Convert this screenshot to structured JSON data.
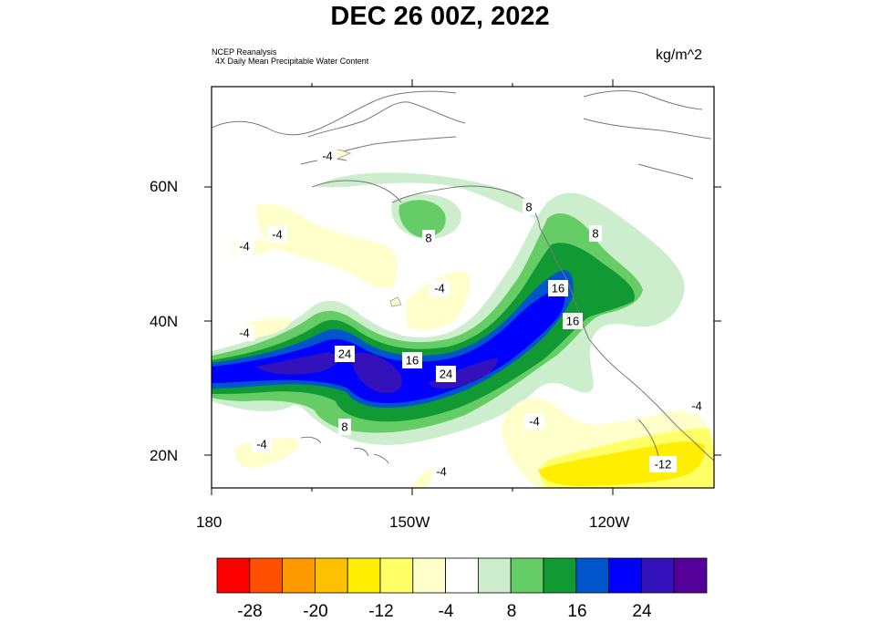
{
  "title": "DEC 26 00Z, 2022",
  "source_line1": "NCEP Reanalysis",
  "source_line2": "4X Daily Mean  Precipitable Water Content",
  "units": "kg/m^2",
  "lat_labels": [
    "60N",
    "40N",
    "20N"
  ],
  "lon_labels": [
    "180",
    "150W",
    "120W"
  ],
  "colorbar": {
    "colors": [
      "#ff0000",
      "#ff5000",
      "#ff9900",
      "#ffc000",
      "#ffee00",
      "#ffff66",
      "#ffffcc",
      "#ffffff",
      "#cceecc",
      "#66cc66",
      "#119933",
      "#0055cc",
      "#0000ff",
      "#3311bb",
      "#550099"
    ],
    "labels": [
      "-28",
      "-20",
      "-12",
      "-4",
      "8",
      "16",
      "24"
    ]
  },
  "contour_labels": [
    "-4",
    "-4",
    "-4",
    "-4",
    "-4",
    "-4",
    "-4",
    "-4",
    "-12",
    "8",
    "8",
    "8",
    "8",
    "16",
    "16",
    "16",
    "24",
    "24"
  ]
}
